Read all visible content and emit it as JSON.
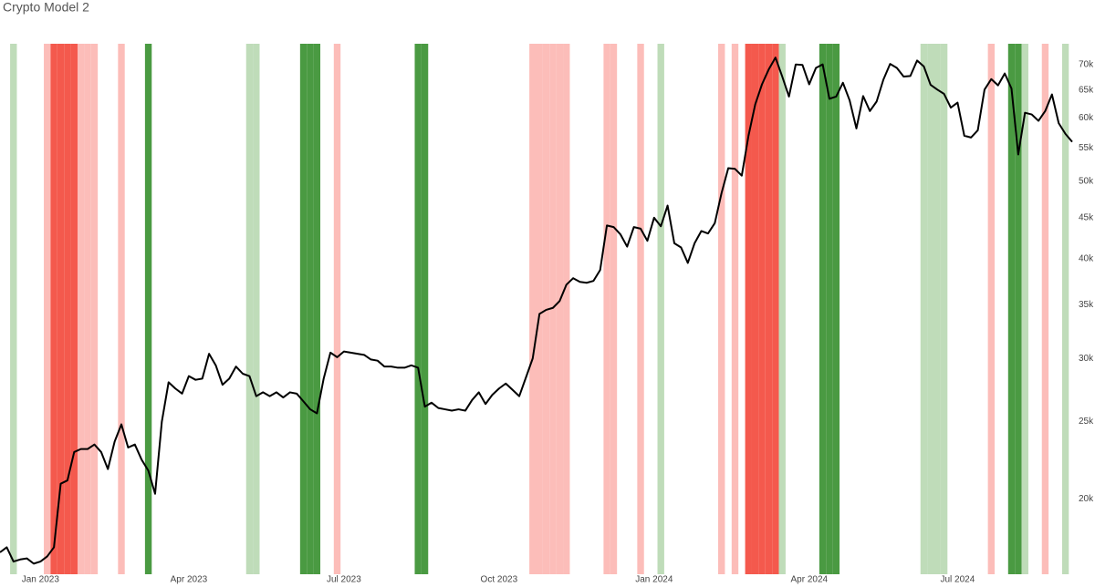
{
  "chart_data": {
    "type": "line",
    "title": "Crypto Model 2",
    "log_y": true,
    "grid": false,
    "ylim": [
      16100,
      74300
    ],
    "yticks": [
      {
        "value": 20000,
        "label": "20k"
      },
      {
        "value": 25000,
        "label": "25k"
      },
      {
        "value": 30000,
        "label": "30k"
      },
      {
        "value": 35000,
        "label": "35k"
      },
      {
        "value": 40000,
        "label": "40k"
      },
      {
        "value": 45000,
        "label": "45k"
      },
      {
        "value": 50000,
        "label": "50k"
      },
      {
        "value": 55000,
        "label": "55k"
      },
      {
        "value": 60000,
        "label": "60k"
      },
      {
        "value": 65000,
        "label": "65k"
      },
      {
        "value": 70000,
        "label": "70k"
      }
    ],
    "color": "#000000",
    "categories": [
      null,
      null,
      null,
      null,
      null,
      null,
      "Jan 2023",
      null,
      null,
      null,
      null,
      null,
      null,
      null,
      null,
      null,
      null,
      null,
      null,
      null,
      null,
      null,
      null,
      null,
      null,
      null,
      null,
      null,
      "Apr 2023",
      null,
      null,
      null,
      null,
      null,
      null,
      null,
      null,
      null,
      null,
      null,
      null,
      null,
      null,
      null,
      null,
      null,
      null,
      null,
      null,
      null,
      null,
      "Jul 2023",
      null,
      null,
      null,
      null,
      null,
      null,
      null,
      null,
      null,
      null,
      null,
      null,
      null,
      null,
      null,
      null,
      null,
      null,
      null,
      null,
      null,
      null,
      "Oct 2023",
      null,
      null,
      null,
      null,
      null,
      null,
      null,
      null,
      null,
      null,
      null,
      null,
      null,
      null,
      null,
      null,
      null,
      null,
      null,
      null,
      null,
      null,
      "Jan 2024",
      null,
      null,
      null,
      null,
      null,
      null,
      null,
      null,
      null,
      null,
      null,
      null,
      null,
      null,
      null,
      null,
      null,
      null,
      null,
      null,
      null,
      null,
      "Apr 2024",
      null,
      null,
      null,
      null,
      null,
      null,
      null,
      null,
      null,
      null,
      null,
      null,
      null,
      null,
      null,
      null,
      null,
      null,
      null,
      null,
      null,
      "Jul 2024",
      null,
      null,
      null,
      null,
      null,
      null,
      null,
      null,
      null,
      null,
      null,
      null,
      null,
      null,
      null,
      null,
      null
    ],
    "values": [
      17150,
      17400,
      16700,
      16800,
      16850,
      16600,
      16700,
      16950,
      17400,
      20900,
      21100,
      22900,
      23100,
      23100,
      23400,
      22900,
      21800,
      23600,
      24800,
      23200,
      23400,
      22400,
      21700,
      20300,
      25000,
      28000,
      27500,
      27100,
      28500,
      28200,
      28300,
      30400,
      29400,
      27800,
      28300,
      29300,
      28700,
      28500,
      26900,
      27200,
      26900,
      27200,
      26800,
      27200,
      27100,
      26500,
      25900,
      25600,
      28300,
      30500,
      30100,
      30600,
      30500,
      30400,
      30300,
      29900,
      29800,
      29300,
      29300,
      29200,
      29200,
      29400,
      29200,
      26100,
      26400,
      26000,
      25900,
      25800,
      25900,
      25800,
      26600,
      27200,
      26300,
      27000,
      27500,
      27900,
      27400,
      26900,
      28400,
      30000,
      34100,
      34500,
      34700,
      35400,
      37100,
      37800,
      37400,
      37300,
      37500,
      38700,
      44000,
      43800,
      42900,
      41400,
      43800,
      43600,
      42100,
      45000,
      43900,
      46600,
      41800,
      41300,
      39500,
      41800,
      43300,
      43000,
      44300,
      48300,
      51900,
      51800,
      50800,
      57000,
      62400,
      66100,
      69000,
      71400,
      67600,
      63800,
      70000,
      69900,
      66100,
      69300,
      70000,
      63400,
      63800,
      66400,
      63100,
      58200,
      63900,
      61200,
      62900,
      67000,
      70100,
      69300,
      67600,
      67700,
      70800,
      69600,
      66000,
      65100,
      64300,
      61800,
      62700,
      57000,
      56700,
      57900,
      65100,
      67100,
      65900,
      68200,
      65300,
      54000,
      60900,
      60600,
      59500,
      61200,
      64200,
      59100,
      57300,
      56000
    ],
    "band_colors": [
      null,
      null,
      "#bfdcb9",
      null,
      null,
      null,
      null,
      "#fcbdb9",
      "#f4594d",
      "#f4594d",
      "#f4594d",
      "#f4594d",
      "#fcbdb9",
      "#fcbdb9",
      "#fcbdb9",
      null,
      null,
      null,
      "#fcbdb9",
      null,
      null,
      null,
      "#4a9a42",
      null,
      null,
      null,
      null,
      null,
      null,
      null,
      null,
      null,
      null,
      null,
      null,
      null,
      null,
      "#bfdcb9",
      "#bfdcb9",
      null,
      null,
      null,
      null,
      null,
      null,
      "#4a9a42",
      "#4a9a42",
      "#4a9a42",
      null,
      null,
      "#fcbdb9",
      null,
      null,
      null,
      null,
      null,
      null,
      null,
      null,
      null,
      null,
      null,
      "#4a9a42",
      "#4a9a42",
      null,
      null,
      null,
      null,
      null,
      null,
      null,
      null,
      null,
      null,
      null,
      null,
      null,
      null,
      null,
      "#fcbdb9",
      "#fcbdb9",
      "#fcbdb9",
      "#fcbdb9",
      "#fcbdb9",
      "#fcbdb9",
      null,
      null,
      null,
      null,
      null,
      "#fcbdb9",
      "#fcbdb9",
      null,
      null,
      null,
      "#fcbdb9",
      null,
      null,
      "#bfdcb9",
      null,
      null,
      null,
      null,
      null,
      null,
      null,
      null,
      "#fcbdb9",
      null,
      "#fcbdb9",
      null,
      "#f4594d",
      "#f4594d",
      "#f4594d",
      "#f4594d",
      "#f4594d",
      "#bfdcb9",
      null,
      null,
      null,
      null,
      null,
      "#4a9a42",
      "#4a9a42",
      "#4a9a42",
      null,
      null,
      null,
      null,
      null,
      null,
      null,
      null,
      null,
      null,
      null,
      null,
      "#bfdcb9",
      "#bfdcb9",
      "#bfdcb9",
      "#bfdcb9",
      null,
      null,
      null,
      null,
      null,
      null,
      "#fcbdb9",
      null,
      null,
      "#4a9a42",
      "#4a9a42",
      "#bfdcb9",
      null,
      null,
      "#fcbdb9",
      null,
      null,
      "#bfdcb9",
      null
    ]
  }
}
